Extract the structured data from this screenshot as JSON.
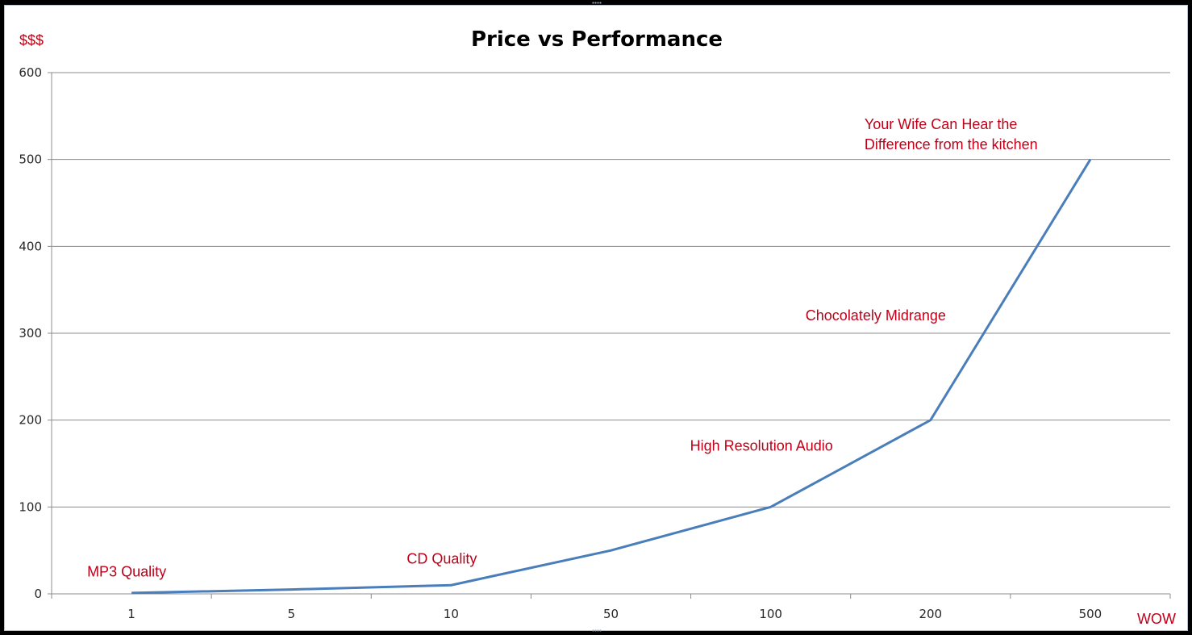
{
  "chart_data": {
    "type": "line",
    "title": "Price vs Performance",
    "ylabel": "$$$",
    "xlabel": "WOW",
    "categories": [
      "1",
      "5",
      "10",
      "50",
      "100",
      "200",
      "500"
    ],
    "series": [
      {
        "values": [
          1,
          5,
          10,
          50,
          100,
          200,
          500
        ]
      }
    ],
    "ylim": [
      0,
      600
    ],
    "yticks": [
      0,
      100,
      200,
      300,
      400,
      500,
      600
    ],
    "grid": true,
    "legend": "none",
    "annotations": [
      {
        "lines": [
          "MP3 Quality"
        ],
        "x_category": "1",
        "y": 20
      },
      {
        "lines": [
          "CD Quality"
        ],
        "x_category": "10",
        "y": 35
      },
      {
        "lines": [
          "High Resolution Audio"
        ],
        "x_category": "100",
        "y": 165
      },
      {
        "lines": [
          "Chocolately Midrange"
        ],
        "x_category": "200",
        "y": 315
      },
      {
        "lines": [
          "Your Wife Can Hear the",
          "Difference from the kitchen"
        ],
        "x_category": "500",
        "y": 535
      }
    ],
    "colors": {
      "series": "#4a7ebb",
      "labels": "#c00018",
      "grid": "#8c8c8c"
    }
  }
}
